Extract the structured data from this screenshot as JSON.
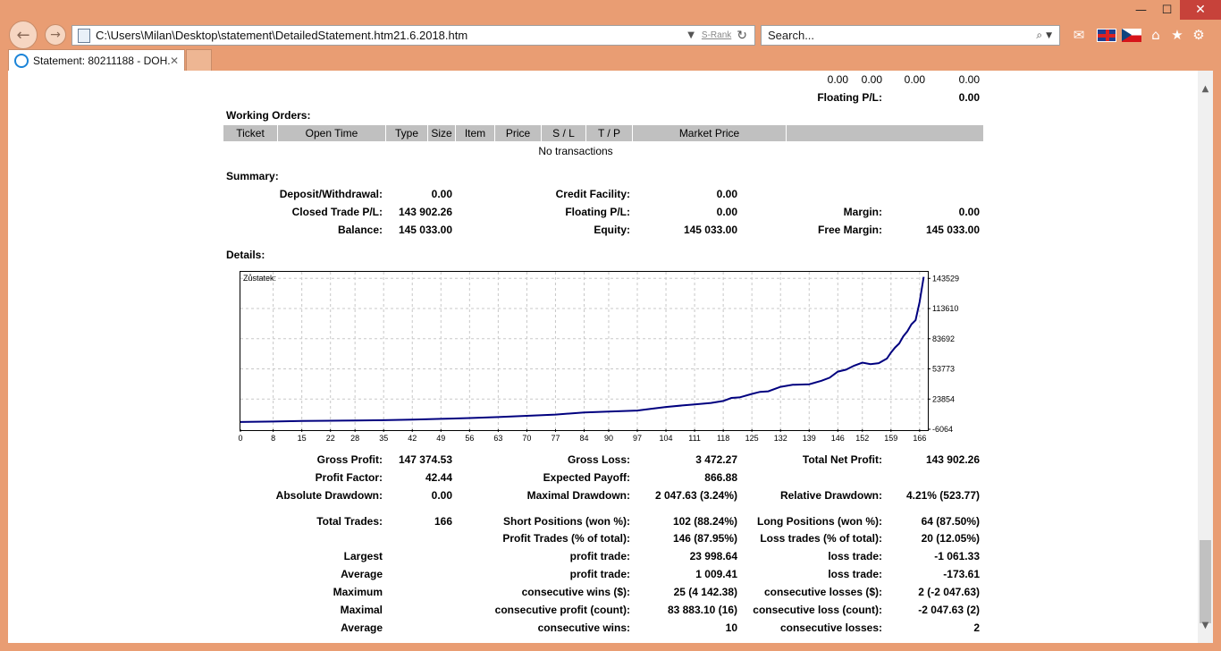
{
  "window": {
    "minimize": "—",
    "maximize": "☐",
    "close": "✕"
  },
  "nav": {
    "back": "←",
    "forward": "→"
  },
  "address": {
    "url": "C:\\Users\\Milan\\Desktop\\statement\\DetailedStatement.htm21.6.2018.htm",
    "srank": "S-Rank",
    "dropdown": "▼",
    "refresh": "↻"
  },
  "search": {
    "placeholder": "Search...",
    "icon": "⌕",
    "dropdown": "▼"
  },
  "toolbar": {
    "home": "⌂",
    "favorites": "★",
    "settings": "⚙",
    "mail": "✉"
  },
  "tab": {
    "title": "Statement: 80211188 - DOH...",
    "close": "✕"
  },
  "top_row": {
    "v1": "0.00",
    "v2": "0.00",
    "v3": "0.00",
    "v4": "0.00",
    "floating_label": "Floating P/L:",
    "floating_value": "0.00"
  },
  "working_orders": {
    "title": "Working Orders:",
    "columns": [
      "Ticket",
      "Open Time",
      "Type",
      "Size",
      "Item",
      "Price",
      "S / L",
      "T / P",
      "Market Price",
      ""
    ],
    "empty": "No transactions"
  },
  "summary": {
    "title": "Summary:",
    "deposit_label": "Deposit/Withdrawal:",
    "deposit_value": "0.00",
    "credit_label": "Credit Facility:",
    "credit_value": "0.00",
    "closed_label": "Closed Trade P/L:",
    "closed_value": "143 902.26",
    "floating_label": "Floating P/L:",
    "floating_value": "0.00",
    "margin_label": "Margin:",
    "margin_value": "0.00",
    "balance_label": "Balance:",
    "balance_value": "145 033.00",
    "equity_label": "Equity:",
    "equity_value": "145 033.00",
    "free_margin_label": "Free Margin:",
    "free_margin_value": "145 033.00"
  },
  "details": {
    "title": "Details:"
  },
  "chart_data": {
    "type": "line",
    "title": "Zůstatek:",
    "xlabel": "",
    "ylabel": "",
    "xlim": [
      0,
      168
    ],
    "ylim": [
      -6064,
      150000
    ],
    "x_ticks": [
      0,
      8,
      15,
      22,
      28,
      35,
      42,
      49,
      56,
      63,
      70,
      77,
      84,
      90,
      97,
      104,
      111,
      118,
      125,
      132,
      139,
      146,
      152,
      159,
      166
    ],
    "y_ticks": [
      -6064,
      23854,
      53773,
      83692,
      113610,
      143529
    ],
    "grid": true,
    "series": [
      {
        "color": "#00007f",
        "x": [
          0,
          8,
          15,
          22,
          28,
          35,
          42,
          49,
          56,
          63,
          70,
          77,
          84,
          90,
          97,
          100,
          104,
          108,
          111,
          115,
          118,
          120,
          122,
          125,
          127,
          129,
          132,
          135,
          139,
          142,
          144,
          146,
          148,
          150,
          152,
          154,
          156,
          158,
          159,
          160,
          161,
          162,
          163,
          164,
          165,
          166,
          167
        ],
        "y": [
          1131,
          1600,
          2100,
          2400,
          2600,
          2900,
          3400,
          4200,
          5000,
          6000,
          7200,
          8500,
          10500,
          11500,
          12500,
          14000,
          16000,
          17500,
          18500,
          20000,
          22000,
          25000,
          25500,
          29000,
          31000,
          31500,
          36000,
          38000,
          38500,
          42000,
          45000,
          51000,
          53000,
          57000,
          60000,
          58500,
          59500,
          64000,
          70000,
          75000,
          79000,
          86000,
          91000,
          98000,
          102000,
          120000,
          145033
        ]
      }
    ]
  },
  "stats": {
    "gross_profit_label": "Gross Profit:",
    "gross_profit": "147 374.53",
    "gross_loss_label": "Gross Loss:",
    "gross_loss": "3 472.27",
    "total_net_label": "Total Net Profit:",
    "total_net": "143 902.26",
    "profit_factor_label": "Profit Factor:",
    "profit_factor": "42.44",
    "expected_payoff_label": "Expected Payoff:",
    "expected_payoff": "866.88",
    "abs_dd_label": "Absolute Drawdown:",
    "abs_dd": "0.00",
    "max_dd_label": "Maximal Drawdown:",
    "max_dd": "2 047.63 (3.24%)",
    "rel_dd_label": "Relative Drawdown:",
    "rel_dd": "4.21% (523.77)",
    "total_trades_label": "Total Trades:",
    "total_trades": "166",
    "short_label": "Short Positions (won %):",
    "short": "102 (88.24%)",
    "long_label": "Long Positions (won %):",
    "long": "64 (87.50%)",
    "profit_trades_label": "Profit Trades (% of total):",
    "profit_trades": "146 (87.95%)",
    "loss_trades_label": "Loss trades (% of total):",
    "loss_trades": "20 (12.05%)",
    "largest_label": "Largest",
    "largest_profit_label": "profit trade:",
    "largest_profit": "23 998.64",
    "largest_loss_label": "loss trade:",
    "largest_loss": "-1 061.33",
    "average_label": "Average",
    "average_profit_label": "profit trade:",
    "average_profit": "1 009.41",
    "average_loss_label": "loss trade:",
    "average_loss": "-173.61",
    "maximum_label": "Maximum",
    "max_cons_wins_label": "consecutive wins ($):",
    "max_cons_wins": "25 (4 142.38)",
    "max_cons_losses_label": "consecutive losses ($):",
    "max_cons_losses": "2 (-2 047.63)",
    "maximal_label": "Maximal",
    "maximal_profit_label": "consecutive profit (count):",
    "maximal_profit": "83 883.10 (16)",
    "maximal_loss_label": "consecutive loss (count):",
    "maximal_loss": "-2 047.63 (2)",
    "avg_label": "Average",
    "avg_cons_wins_label": "consecutive wins:",
    "avg_cons_wins": "10",
    "avg_cons_losses_label": "consecutive losses:",
    "avg_cons_losses": "2"
  }
}
